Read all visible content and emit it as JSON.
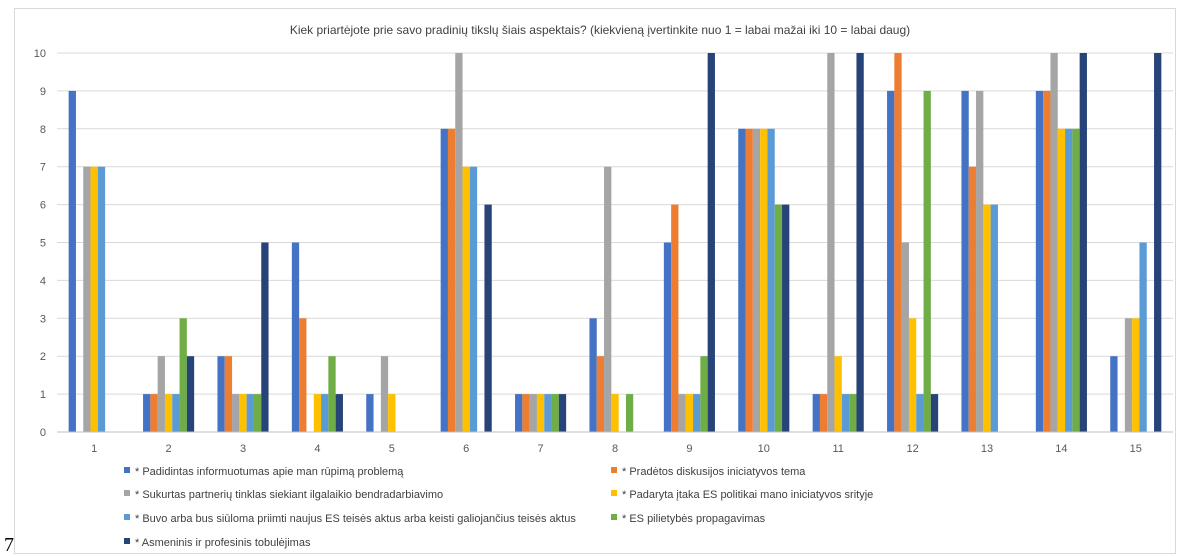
{
  "page_number": "7",
  "chart_data": {
    "type": "bar",
    "title": "Kiek priartėjote prie savo pradinių tikslų šiais aspektais? (kiekvieną įvertinkite nuo 1 = labai mažai iki 10 = labai daug)",
    "xlabel": "",
    "ylabel": "",
    "ylim": [
      0,
      10
    ],
    "yticks": [
      "0",
      "1",
      "2",
      "3",
      "4",
      "5",
      "6",
      "7",
      "8",
      "9",
      "10"
    ],
    "grid": true,
    "legend_position": "bottom",
    "categories": [
      "1",
      "2",
      "3",
      "4",
      "5",
      "6",
      "7",
      "8",
      "9",
      "10",
      "11",
      "12",
      "13",
      "14",
      "15"
    ],
    "series": [
      {
        "name": "* Padidintas informuotumas apie man rūpimą problemą",
        "color": "#4472C4",
        "values": [
          9,
          1,
          2,
          5,
          1,
          8,
          1,
          3,
          5,
          8,
          1,
          9,
          9,
          9,
          2
        ]
      },
      {
        "name": "* Pradėtos diskusijos iniciatyvos tema",
        "color": "#ED7D31",
        "values": [
          0,
          1,
          2,
          3,
          0,
          8,
          1,
          2,
          6,
          8,
          1,
          10,
          7,
          9,
          0
        ]
      },
      {
        "name": "* Sukurtas partnerių tinklas siekiant ilgalaikio bendradarbiavimo",
        "color": "#A5A5A5",
        "values": [
          7,
          2,
          1,
          0,
          2,
          10,
          1,
          7,
          1,
          8,
          10,
          5,
          9,
          10,
          3
        ]
      },
      {
        "name": "* Padaryta įtaka ES politikai mano iniciatyvos srityje",
        "color": "#FFC000",
        "values": [
          7,
          1,
          1,
          1,
          1,
          7,
          1,
          1,
          1,
          8,
          2,
          3,
          6,
          8,
          3
        ]
      },
      {
        "name": "* Buvo arba bus siūloma priimti naujus ES teisės aktus arba keisti galiojančius teisės aktus",
        "color": "#5B9BD5",
        "values": [
          7,
          1,
          1,
          1,
          0,
          7,
          1,
          0,
          1,
          8,
          1,
          1,
          6,
          8,
          5
        ]
      },
      {
        "name": "* ES pilietybės propagavimas",
        "color": "#70AD47",
        "values": [
          0,
          3,
          1,
          2,
          0,
          0,
          1,
          1,
          2,
          6,
          1,
          9,
          0,
          8,
          0
        ]
      },
      {
        "name": "* Asmeninis ir profesinis tobulėjimas",
        "color": "#264478",
        "values": [
          0,
          2,
          5,
          1,
          0,
          6,
          1,
          0,
          10,
          6,
          10,
          1,
          0,
          10,
          10
        ]
      }
    ]
  }
}
